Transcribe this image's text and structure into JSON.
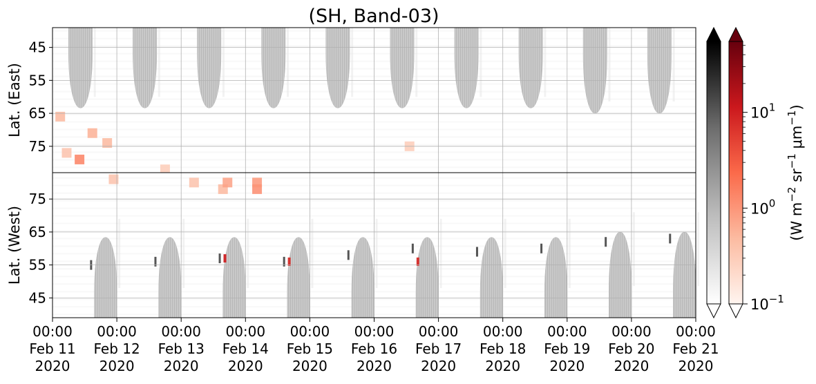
{
  "chart_data": {
    "type": "heatmap",
    "title": "(SH, Band-03)",
    "x_ticks": [
      {
        "time": "00:00",
        "date": "Feb 11",
        "year": "2020"
      },
      {
        "time": "00:00",
        "date": "Feb 12",
        "year": "2020"
      },
      {
        "time": "00:00",
        "date": "Feb 13",
        "year": "2020"
      },
      {
        "time": "00:00",
        "date": "Feb 14",
        "year": "2020"
      },
      {
        "time": "00:00",
        "date": "Feb 15",
        "year": "2020"
      },
      {
        "time": "00:00",
        "date": "Feb 16",
        "year": "2020"
      },
      {
        "time": "00:00",
        "date": "Feb 17",
        "year": "2020"
      },
      {
        "time": "00:00",
        "date": "Feb 18",
        "year": "2020"
      },
      {
        "time": "00:00",
        "date": "Feb 19",
        "year": "2020"
      },
      {
        "time": "00:00",
        "date": "Feb 20",
        "year": "2020"
      },
      {
        "time": "00:00",
        "date": "Feb 21",
        "year": "2020"
      }
    ],
    "x_range": [
      "2020-02-11 00:00",
      "2020-02-21 00:00"
    ],
    "grid": true,
    "panels": [
      {
        "name": "east",
        "ylabel": "Lat. (East)",
        "y_ticks": [
          "45",
          "55",
          "65",
          "75"
        ],
        "y_range": [
          39,
          83
        ],
        "y_direction": "down",
        "gray_lobes": [
          {
            "start_day": 0.25,
            "end_day": 0.62,
            "min_lat": 69
          },
          {
            "start_day": 1.25,
            "end_day": 1.62,
            "min_lat": 69
          },
          {
            "start_day": 2.25,
            "end_day": 2.62,
            "min_lat": 69
          },
          {
            "start_day": 3.25,
            "end_day": 3.62,
            "min_lat": 69
          },
          {
            "start_day": 4.25,
            "end_day": 4.62,
            "min_lat": 69
          },
          {
            "start_day": 5.25,
            "end_day": 5.62,
            "min_lat": 69
          },
          {
            "start_day": 6.25,
            "end_day": 6.62,
            "min_lat": 69
          },
          {
            "start_day": 7.25,
            "end_day": 7.62,
            "min_lat": 69
          },
          {
            "start_day": 8.25,
            "end_day": 8.62,
            "min_lat": 71
          },
          {
            "start_day": 9.25,
            "end_day": 9.62,
            "min_lat": 71
          }
        ],
        "red_patches": [
          {
            "day": 0.12,
            "lat": 66,
            "level": 0.5
          },
          {
            "day": 0.22,
            "lat": 77,
            "level": 0.4
          },
          {
            "day": 0.42,
            "lat": 79,
            "level": 1.5
          },
          {
            "day": 0.62,
            "lat": 71,
            "level": 0.6
          },
          {
            "day": 0.85,
            "lat": 74,
            "level": 0.5
          },
          {
            "day": 1.75,
            "lat": 82,
            "level": 0.3
          },
          {
            "day": 5.55,
            "lat": 75,
            "level": 0.3
          }
        ]
      },
      {
        "name": "west",
        "ylabel": "Lat. (West)",
        "y_ticks": [
          "75",
          "65",
          "55",
          "45"
        ],
        "y_range": [
          39,
          83
        ],
        "y_direction": "up",
        "gray_lobes": [
          {
            "start_day": 0.65,
            "end_day": 1.0,
            "min_lat": 69
          },
          {
            "start_day": 1.65,
            "end_day": 2.0,
            "min_lat": 69
          },
          {
            "start_day": 2.65,
            "end_day": 3.0,
            "min_lat": 69
          },
          {
            "start_day": 3.65,
            "end_day": 4.0,
            "min_lat": 69
          },
          {
            "start_day": 4.65,
            "end_day": 5.0,
            "min_lat": 69
          },
          {
            "start_day": 5.65,
            "end_day": 6.0,
            "min_lat": 69
          },
          {
            "start_day": 6.65,
            "end_day": 7.0,
            "min_lat": 69
          },
          {
            "start_day": 7.65,
            "end_day": 8.0,
            "min_lat": 69
          },
          {
            "start_day": 8.65,
            "end_day": 9.0,
            "min_lat": 71
          },
          {
            "start_day": 9.65,
            "end_day": 10.0,
            "min_lat": 71
          }
        ],
        "red_patches": [
          {
            "day": 0.95,
            "lat": 81,
            "level": 0.4
          },
          {
            "day": 2.2,
            "lat": 80,
            "level": 0.4
          },
          {
            "day": 2.65,
            "lat": 78,
            "level": 0.5
          },
          {
            "day": 2.72,
            "lat": 80,
            "level": 0.8
          },
          {
            "day": 3.18,
            "lat": 78,
            "level": 1.2
          },
          {
            "day": 3.18,
            "lat": 80,
            "level": 1.0
          },
          {
            "day": 3.68,
            "lat": 56,
            "level": 8
          },
          {
            "day": 5.68,
            "lat": 56,
            "level": 8
          },
          {
            "day": 2.68,
            "lat": 57,
            "level": 10
          }
        ],
        "gray_marks": [
          {
            "day": 0.6,
            "lat": 55
          },
          {
            "day": 1.6,
            "lat": 56
          },
          {
            "day": 2.6,
            "lat": 57
          },
          {
            "day": 3.6,
            "lat": 56
          },
          {
            "day": 4.6,
            "lat": 58
          },
          {
            "day": 5.6,
            "lat": 60
          },
          {
            "day": 6.6,
            "lat": 59
          },
          {
            "day": 7.6,
            "lat": 60
          },
          {
            "day": 8.6,
            "lat": 62
          },
          {
            "day": 9.6,
            "lat": 63
          }
        ]
      }
    ],
    "colorbars": [
      {
        "name": "gray",
        "colors": [
          "#ffffff",
          "#bdbdbd",
          "#6e6e6e",
          "#000000"
        ],
        "extend": "both"
      },
      {
        "name": "reds",
        "colors": [
          "#fff5f0",
          "#fcbba1",
          "#fb6a4a",
          "#cb181d",
          "#67000d"
        ],
        "extend": "both"
      }
    ],
    "colorbar_scale": "log",
    "colorbar_range": [
      0.1,
      55
    ],
    "colorbar_ticks": [
      {
        "base": "10",
        "exp": "−1",
        "value": 0.1
      },
      {
        "base": "10",
        "exp": "0",
        "value": 1
      },
      {
        "base": "10",
        "exp": "1",
        "value": 10
      }
    ],
    "colorbar_label": {
      "parts": [
        "(W m",
        "−2",
        " sr",
        "−1",
        " μm",
        "−1",
        ")"
      ]
    }
  }
}
